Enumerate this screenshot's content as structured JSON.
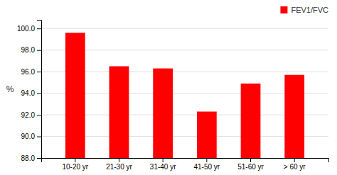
{
  "chart_data": {
    "type": "bar",
    "categories": [
      "10-20 yr",
      "21-30 yr",
      "31-40 yr",
      "41-50 yr",
      "51-60 yr",
      "> 60 yr"
    ],
    "series": [
      {
        "name": "FEV1/FVC",
        "color": "#ff0000",
        "values": [
          99.6,
          96.5,
          96.3,
          92.3,
          94.9,
          95.7
        ]
      }
    ],
    "ylabel": "%",
    "ylim": [
      88.0,
      100.8
    ],
    "yticks": [
      {
        "value": 88.0,
        "label": "88.0"
      },
      {
        "value": 90.0,
        "label": "90.0"
      },
      {
        "value": 92.0,
        "label": "92.0"
      },
      {
        "value": 94.0,
        "label": "94.0"
      },
      {
        "value": 96.0,
        "label": "96.0"
      },
      {
        "value": 98.0,
        "label": "98.0"
      },
      {
        "value": 100.0,
        "label": "100.0"
      }
    ],
    "grid": true,
    "legend": "upper right"
  }
}
